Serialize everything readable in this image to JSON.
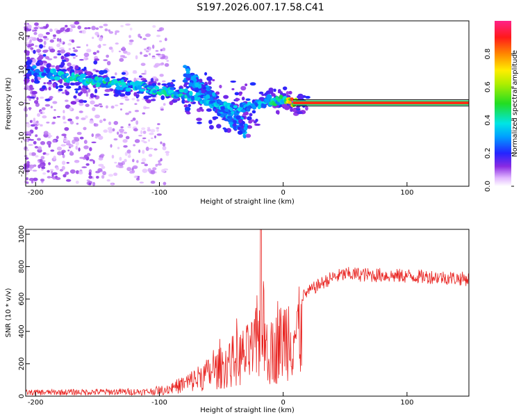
{
  "title": "S197.2026.007.17.58.C41",
  "chart_data": [
    {
      "type": "heatmap",
      "xlabel": "Height of straight line (km)",
      "ylabel": "Frequency (Hz)",
      "xlim": [
        -208,
        150
      ],
      "ylim": [
        -24.5,
        24.5
      ],
      "xticks": [
        -200,
        -100,
        0,
        100
      ],
      "yticks": [
        -20,
        -10,
        0,
        10,
        20
      ],
      "colorbar": {
        "label": "Normalized spectral amplitude",
        "range": [
          0,
          1
        ],
        "ticks": [
          0.0,
          0.2,
          0.4,
          0.6,
          0.8
        ],
        "tick_labels": [
          "0.0",
          "0.2",
          "0.4",
          "0.6",
          "0.8"
        ]
      },
      "ridge": {
        "description_points_x": [
          -205,
          -190,
          -175,
          -160,
          -140,
          -120,
          -100,
          -85,
          -70,
          -55,
          -40,
          -30,
          -20,
          -10,
          0,
          10,
          20,
          150
        ],
        "frequency_hz": [
          10,
          9,
          8,
          7,
          6,
          5,
          4,
          3,
          2,
          0,
          -2,
          -1,
          0,
          1,
          1,
          0.3,
          0.2,
          0.2
        ],
        "amplitude": [
          0.3,
          0.3,
          0.35,
          0.35,
          0.35,
          0.3,
          0.35,
          0.35,
          0.3,
          0.3,
          0.3,
          0.3,
          0.3,
          0.35,
          0.4,
          0.8,
          0.85,
          0.85
        ]
      }
    },
    {
      "type": "line",
      "xlabel": "Height of straight line (km)",
      "ylabel": "SNR (10 * v/v)",
      "xlim": [
        -208,
        150
      ],
      "ylim": [
        0,
        1030
      ],
      "xticks": [
        -200,
        -100,
        0,
        100
      ],
      "yticks": [
        0,
        200,
        400,
        600,
        800,
        1000
      ],
      "series": [
        {
          "name": "SNR",
          "color": "#e8221f",
          "envelope_x": [
            -208,
            -130,
            -110,
            -100,
            -90,
            -80,
            -70,
            -60,
            -50,
            -40,
            -30,
            -25,
            -20,
            -18,
            -15,
            -10,
            -5,
            0,
            5,
            10,
            15,
            20,
            30,
            40,
            50,
            60,
            70,
            80,
            90,
            100,
            110,
            120,
            130,
            140,
            150
          ],
          "envelope_y": [
            25,
            30,
            30,
            40,
            80,
            120,
            170,
            220,
            280,
            350,
            400,
            440,
            500,
            1030,
            500,
            420,
            480,
            560,
            640,
            610,
            620,
            650,
            700,
            740,
            760,
            760,
            755,
            755,
            750,
            750,
            745,
            745,
            740,
            735,
            730
          ]
        }
      ]
    }
  ]
}
